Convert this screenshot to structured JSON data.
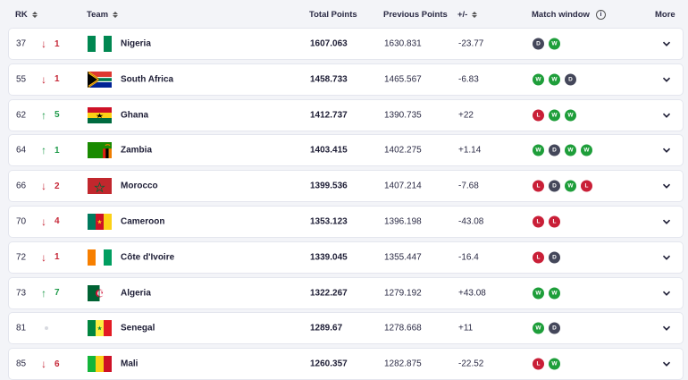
{
  "header": {
    "rk": "RK",
    "team": "Team",
    "total": "Total Points",
    "previous": "Previous Points",
    "diff": "+/-",
    "window": "Match window",
    "info_icon": "info-icon",
    "more": "More"
  },
  "colors": {
    "win": "#1e9e3a",
    "draw": "#44475a",
    "loss": "#c91f37",
    "up": "#1f9a4a",
    "down": "#c62838"
  },
  "rows": [
    {
      "rank": "37",
      "dir": "down",
      "move": "1",
      "team": "Nigeria",
      "flag": "nigeria",
      "total": "1607.063",
      "previous": "1630.831",
      "diff": "-23.77",
      "window": [
        "D",
        "W"
      ]
    },
    {
      "rank": "55",
      "dir": "down",
      "move": "1",
      "team": "South Africa",
      "flag": "south-africa",
      "total": "1458.733",
      "previous": "1465.567",
      "diff": "-6.83",
      "window": [
        "W",
        "W",
        "D"
      ]
    },
    {
      "rank": "62",
      "dir": "up",
      "move": "5",
      "team": "Ghana",
      "flag": "ghana",
      "total": "1412.737",
      "previous": "1390.735",
      "diff": "+22",
      "window": [
        "L",
        "W",
        "W"
      ]
    },
    {
      "rank": "64",
      "dir": "up",
      "move": "1",
      "team": "Zambia",
      "flag": "zambia",
      "total": "1403.415",
      "previous": "1402.275",
      "diff": "+1.14",
      "window": [
        "W",
        "D",
        "W",
        "W"
      ]
    },
    {
      "rank": "66",
      "dir": "down",
      "move": "2",
      "team": "Morocco",
      "flag": "morocco",
      "total": "1399.536",
      "previous": "1407.214",
      "diff": "-7.68",
      "window": [
        "L",
        "D",
        "W",
        "L"
      ]
    },
    {
      "rank": "70",
      "dir": "down",
      "move": "4",
      "team": "Cameroon",
      "flag": "cameroon",
      "total": "1353.123",
      "previous": "1396.198",
      "diff": "-43.08",
      "window": [
        "L",
        "L"
      ]
    },
    {
      "rank": "72",
      "dir": "down",
      "move": "1",
      "team": "Côte d'Ivoire",
      "flag": "cote-divoire",
      "total": "1339.045",
      "previous": "1355.447",
      "diff": "-16.4",
      "window": [
        "L",
        "D"
      ]
    },
    {
      "rank": "73",
      "dir": "up",
      "move": "7",
      "team": "Algeria",
      "flag": "algeria",
      "total": "1322.267",
      "previous": "1279.192",
      "diff": "+43.08",
      "window": [
        "W",
        "W"
      ]
    },
    {
      "rank": "81",
      "dir": "same",
      "move": "",
      "team": "Senegal",
      "flag": "senegal",
      "total": "1289.67",
      "previous": "1278.668",
      "diff": "+11",
      "window": [
        "W",
        "D"
      ]
    },
    {
      "rank": "85",
      "dir": "down",
      "move": "6",
      "team": "Mali",
      "flag": "mali",
      "total": "1260.357",
      "previous": "1282.875",
      "diff": "-22.52",
      "window": [
        "L",
        "W"
      ]
    }
  ]
}
